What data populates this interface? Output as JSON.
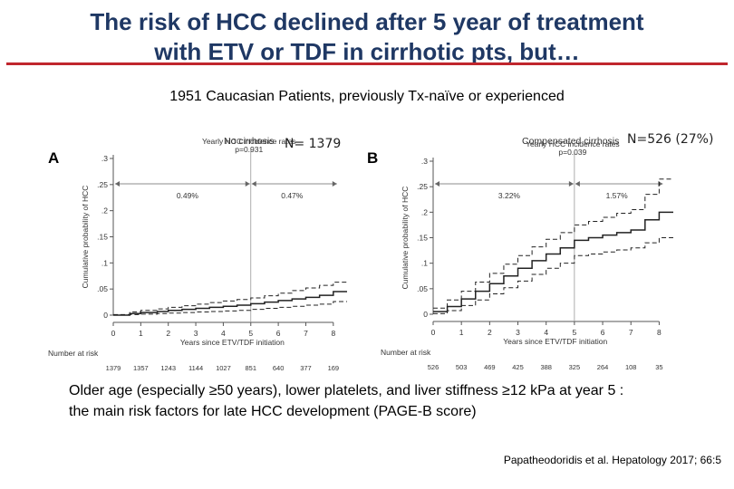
{
  "slide": {
    "title_line1": "The risk of HCC declined after 5 year of treatment",
    "title_line2": "with ETV or TDF in cirrhotic pts, but…",
    "subtitle": "1951 Caucasian Patients, previously Tx-naïve or experienced",
    "conclusion_line1": "Older age (especially ≥50 years), lower platelets, and liver stiffness ≥12 kPa at year 5 :",
    "conclusion_line2": "the main risk factors for late HCC development (PAGE-B score)",
    "citation": "Papatheodoridis et al. Hepatology 2017; 66:5",
    "accent_color": "#c0262d",
    "title_color": "#1f3864"
  },
  "chart_data": [
    {
      "type": "line",
      "panel_letter": "A",
      "group_label": "No cirrhosis",
      "n_label": "N= 1379",
      "title": "Yearly HCC incidence rates",
      "p_value": "p=0.931",
      "rate_before_5y": "0.49%",
      "rate_after_5y": "0.47%",
      "xlabel": "Years since ETV/TDF initiation",
      "ylabel": "Cumulative probability of HCC",
      "x_ticks": [
        "0",
        "1",
        "2",
        "3",
        "4",
        "5",
        "6",
        "7",
        "8"
      ],
      "y_ticks": [
        "0",
        ".05",
        ".1",
        ".15",
        ".2",
        ".25",
        ".3"
      ],
      "xlim": [
        0,
        8.5
      ],
      "ylim": [
        0,
        0.3
      ],
      "risk_label": "Number at risk",
      "number_at_risk": [
        "1379",
        "1357",
        "1243",
        "1144",
        "1027",
        "851",
        "640",
        "377",
        "169"
      ],
      "series": [
        {
          "role": "estimate",
          "style": "solid",
          "x": [
            0,
            0.6,
            1,
            1.6,
            2,
            2.5,
            3,
            3.5,
            4,
            4.5,
            5,
            5.5,
            6,
            6.5,
            7,
            7.5,
            8,
            8.5
          ],
          "y": [
            0,
            0.003,
            0.005,
            0.007,
            0.009,
            0.011,
            0.013,
            0.015,
            0.017,
            0.019,
            0.022,
            0.025,
            0.028,
            0.031,
            0.034,
            0.038,
            0.045,
            0.045
          ]
        },
        {
          "role": "upper_ci",
          "style": "dashed",
          "x": [
            0,
            0.6,
            1,
            1.6,
            2,
            2.5,
            3,
            3.5,
            4,
            4.5,
            5,
            5.5,
            6,
            6.5,
            7,
            7.5,
            8,
            8.5
          ],
          "y": [
            0.001,
            0.006,
            0.009,
            0.012,
            0.015,
            0.018,
            0.021,
            0.024,
            0.027,
            0.03,
            0.033,
            0.037,
            0.042,
            0.047,
            0.052,
            0.057,
            0.063,
            0.063
          ]
        },
        {
          "role": "lower_ci",
          "style": "dashed",
          "x": [
            0,
            0.6,
            1,
            1.6,
            2,
            2.5,
            3,
            3.5,
            4,
            4.5,
            5,
            5.5,
            6,
            6.5,
            7,
            7.5,
            8,
            8.5
          ],
          "y": [
            0,
            0.001,
            0.002,
            0.003,
            0.004,
            0.005,
            0.006,
            0.007,
            0.008,
            0.009,
            0.011,
            0.013,
            0.015,
            0.017,
            0.019,
            0.021,
            0.026,
            0.026
          ]
        }
      ],
      "split_x": 5,
      "grid": false
    },
    {
      "type": "line",
      "panel_letter": "B",
      "group_label": "Compensated cirrhosis",
      "n_label": "N=526 (27%)",
      "title": "Yearly HCC incidence rates",
      "p_value": "p=0.039",
      "rate_before_5y": "3.22%",
      "rate_after_5y": "1.57%",
      "xlabel": "Years since ETV/TDF initiation",
      "ylabel": "Cumulative probability of HCC",
      "x_ticks": [
        "0",
        "1",
        "2",
        "3",
        "4",
        "5",
        "6",
        "7",
        "8"
      ],
      "y_ticks": [
        "0",
        ".05",
        ".1",
        ".15",
        ".2",
        ".25",
        ".3"
      ],
      "xlim": [
        0,
        8.5
      ],
      "ylim": [
        0,
        0.3
      ],
      "risk_label": "Number at risk",
      "number_at_risk": [
        "526",
        "503",
        "469",
        "425",
        "388",
        "325",
        "264",
        "108",
        "35"
      ],
      "series": [
        {
          "role": "estimate",
          "style": "solid",
          "x": [
            0,
            0.5,
            1,
            1.5,
            2,
            2.5,
            3,
            3.5,
            4,
            4.5,
            5,
            5.5,
            6,
            6.5,
            7,
            7.5,
            8,
            8.5
          ],
          "y": [
            0.005,
            0.015,
            0.03,
            0.045,
            0.06,
            0.075,
            0.09,
            0.105,
            0.118,
            0.13,
            0.145,
            0.15,
            0.155,
            0.16,
            0.165,
            0.185,
            0.2,
            0.2
          ]
        },
        {
          "role": "upper_ci",
          "style": "dashed",
          "x": [
            0,
            0.5,
            1,
            1.5,
            2,
            2.5,
            3,
            3.5,
            4,
            4.5,
            5,
            5.5,
            6,
            6.5,
            7,
            7.5,
            8,
            8.5
          ],
          "y": [
            0.012,
            0.028,
            0.045,
            0.063,
            0.08,
            0.098,
            0.115,
            0.132,
            0.147,
            0.16,
            0.175,
            0.182,
            0.19,
            0.198,
            0.205,
            0.235,
            0.265,
            0.265
          ]
        },
        {
          "role": "lower_ci",
          "style": "dashed",
          "x": [
            0,
            0.5,
            1,
            1.5,
            2,
            2.5,
            3,
            3.5,
            4,
            4.5,
            5,
            5.5,
            6,
            6.5,
            7,
            7.5,
            8,
            8.5
          ],
          "y": [
            0.001,
            0.007,
            0.017,
            0.028,
            0.04,
            0.052,
            0.065,
            0.078,
            0.09,
            0.1,
            0.115,
            0.118,
            0.122,
            0.126,
            0.13,
            0.14,
            0.15,
            0.15
          ]
        }
      ],
      "split_x": 5,
      "grid": false
    }
  ]
}
